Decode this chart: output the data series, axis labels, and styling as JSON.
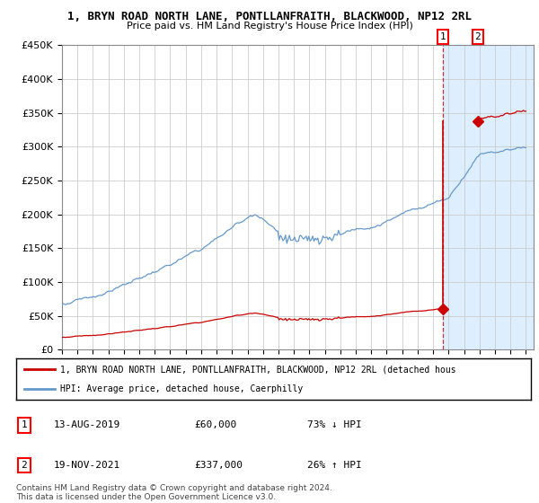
{
  "title": "1, BRYN ROAD NORTH LANE, PONTLLANFRAITH, BLACKWOOD, NP12 2RL",
  "subtitle": "Price paid vs. HM Land Registry's House Price Index (HPI)",
  "ylim": [
    0,
    450000
  ],
  "yticks": [
    0,
    50000,
    100000,
    150000,
    200000,
    250000,
    300000,
    350000,
    400000,
    450000
  ],
  "ytick_labels": [
    "£0",
    "£50K",
    "£100K",
    "£150K",
    "£200K",
    "£250K",
    "£300K",
    "£350K",
    "£400K",
    "£450K"
  ],
  "xstart_year": 1995,
  "xend_year": 2025,
  "hpi_color": "#6699cc",
  "price_color": "#cc0000",
  "purchase1_year": 2019.62,
  "purchase1_price": 60000,
  "purchase2_year": 2021.89,
  "purchase2_price": 337000,
  "legend_line1": "1, BRYN ROAD NORTH LANE, PONTLLANFRAITH, BLACKWOOD, NP12 2RL (detached hous",
  "legend_line2": "HPI: Average price, detached house, Caerphilly",
  "table_row1": [
    "1",
    "13-AUG-2019",
    "£60,000",
    "73% ↓ HPI"
  ],
  "table_row2": [
    "2",
    "19-NOV-2021",
    "£337,000",
    "26% ↑ HPI"
  ],
  "footnote": "Contains HM Land Registry data © Crown copyright and database right 2024.\nThis data is licensed under the Open Government Licence v3.0.",
  "highlight_color": "#ddeeff",
  "background_color": "#ffffff",
  "grid_color": "#cccccc"
}
